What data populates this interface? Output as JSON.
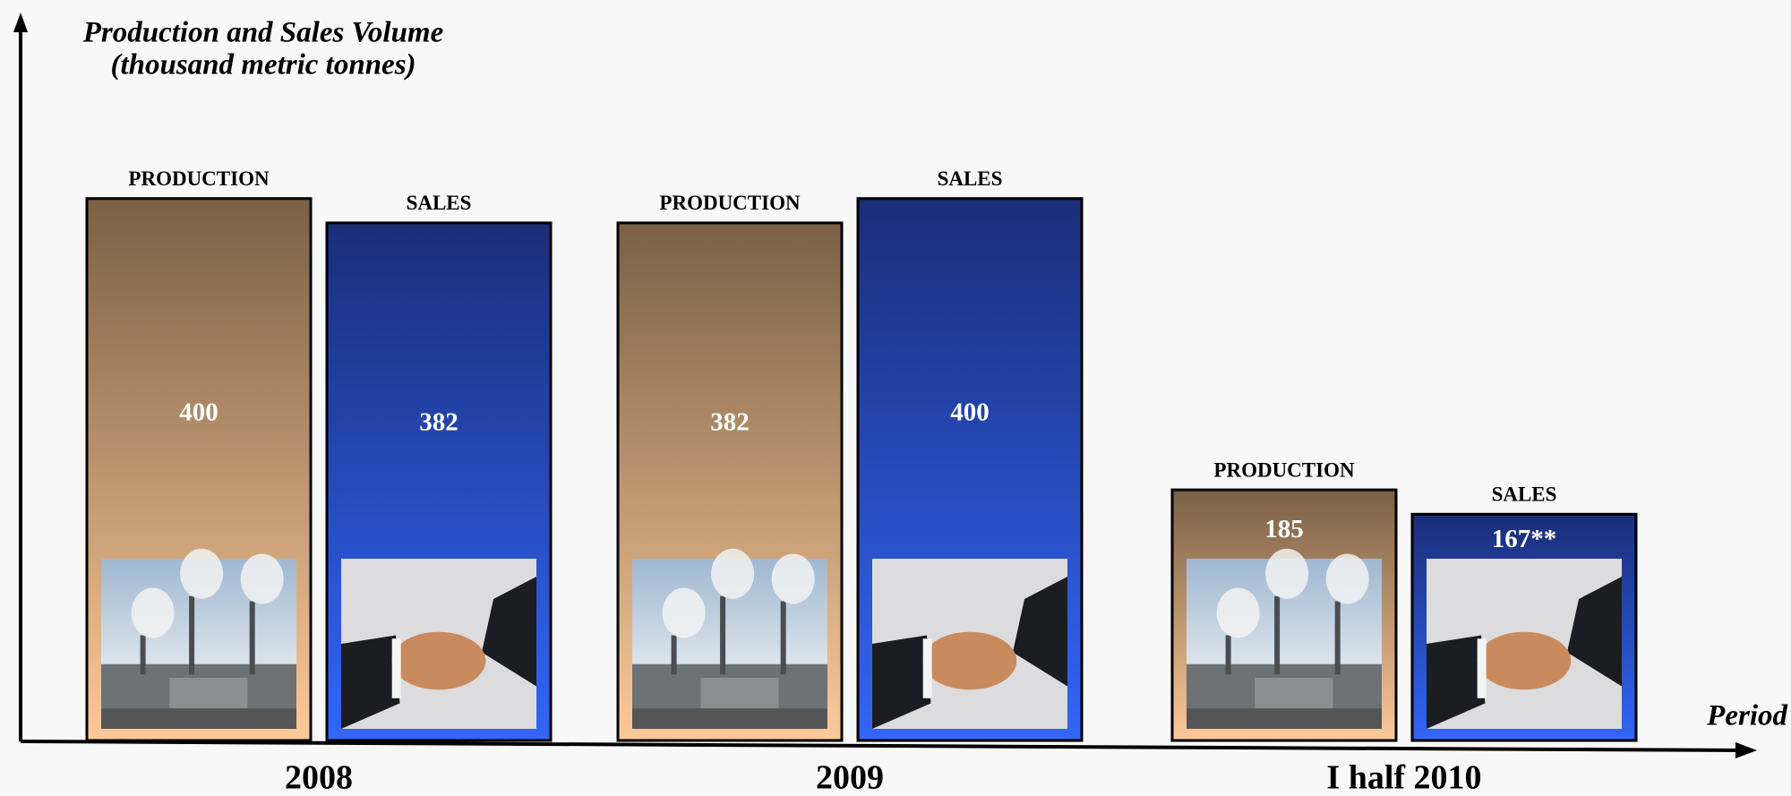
{
  "chart_data": {
    "type": "bar",
    "y_label": [
      "Production and Sales Volume",
      "(thousand metric tonnes)"
    ],
    "x_label": "Period",
    "categories": [
      "2008",
      "2009",
      "I half 2010"
    ],
    "ylim": [
      0,
      530
    ],
    "series": [
      {
        "name": "PRODUCTION",
        "color": [
          "#7a6045",
          "#fdc999"
        ],
        "values": [
          400,
          382,
          185
        ]
      },
      {
        "name": "SALES",
        "color": [
          "#1a2d78",
          "#3266f8"
        ],
        "values": [
          382,
          400,
          167
        ],
        "value_labels": [
          "382",
          "400",
          "167**"
        ]
      }
    ]
  }
}
